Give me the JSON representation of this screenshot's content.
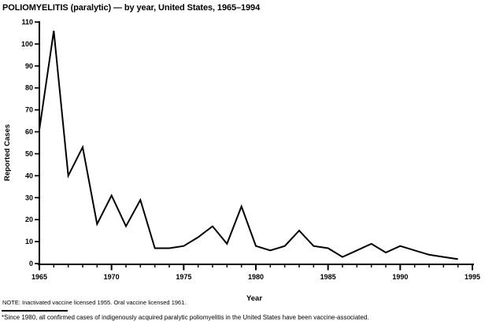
{
  "title": "POLIOMYELITIS (paralytic) — by year, United States, 1965–1994",
  "notes": {
    "note": "NOTE: Inactivated vaccine licensed 1955. Oral vaccine licensed 1961.",
    "footnote": "*Since 1980, all confirmed cases of indigenously acquired paralytic poliomyelitis in the United States have been vaccine-associated."
  },
  "chart_data": {
    "type": "line",
    "title": "POLIOMYELITIS (paralytic) — by year, United States, 1965–1994",
    "xlabel": "Year",
    "ylabel": "Reported Cases",
    "x": [
      1965,
      1966,
      1967,
      1968,
      1969,
      1970,
      1971,
      1972,
      1973,
      1974,
      1975,
      1976,
      1977,
      1978,
      1979,
      1980,
      1981,
      1982,
      1983,
      1984,
      1985,
      1986,
      1987,
      1988,
      1989,
      1990,
      1991,
      1992,
      1993,
      1994
    ],
    "series": [
      {
        "name": "Reported Cases",
        "values": [
          61,
          106,
          40,
          53,
          18,
          31,
          17,
          29,
          7,
          7,
          8,
          12,
          17,
          9,
          26,
          8,
          6,
          8,
          15,
          8,
          7,
          3,
          6,
          9,
          5,
          8,
          6,
          4,
          3,
          2
        ]
      }
    ],
    "xlim": [
      1965,
      1995
    ],
    "ylim": [
      0,
      110
    ],
    "y_tick_interval": 10,
    "x_major_tick_interval": 5,
    "x_minor_tick_interval": 1,
    "x_major_tick_labels": [
      "1965",
      "1970",
      "1975",
      "1980",
      "1985",
      "1990",
      "1995"
    ],
    "y_tick_labels": [
      "0",
      "10",
      "20",
      "30",
      "40",
      "50",
      "60",
      "70",
      "80",
      "90",
      "100",
      "110"
    ],
    "grid": false,
    "legend": "none",
    "line_color": "#000000",
    "background_color": "#ffffff"
  }
}
